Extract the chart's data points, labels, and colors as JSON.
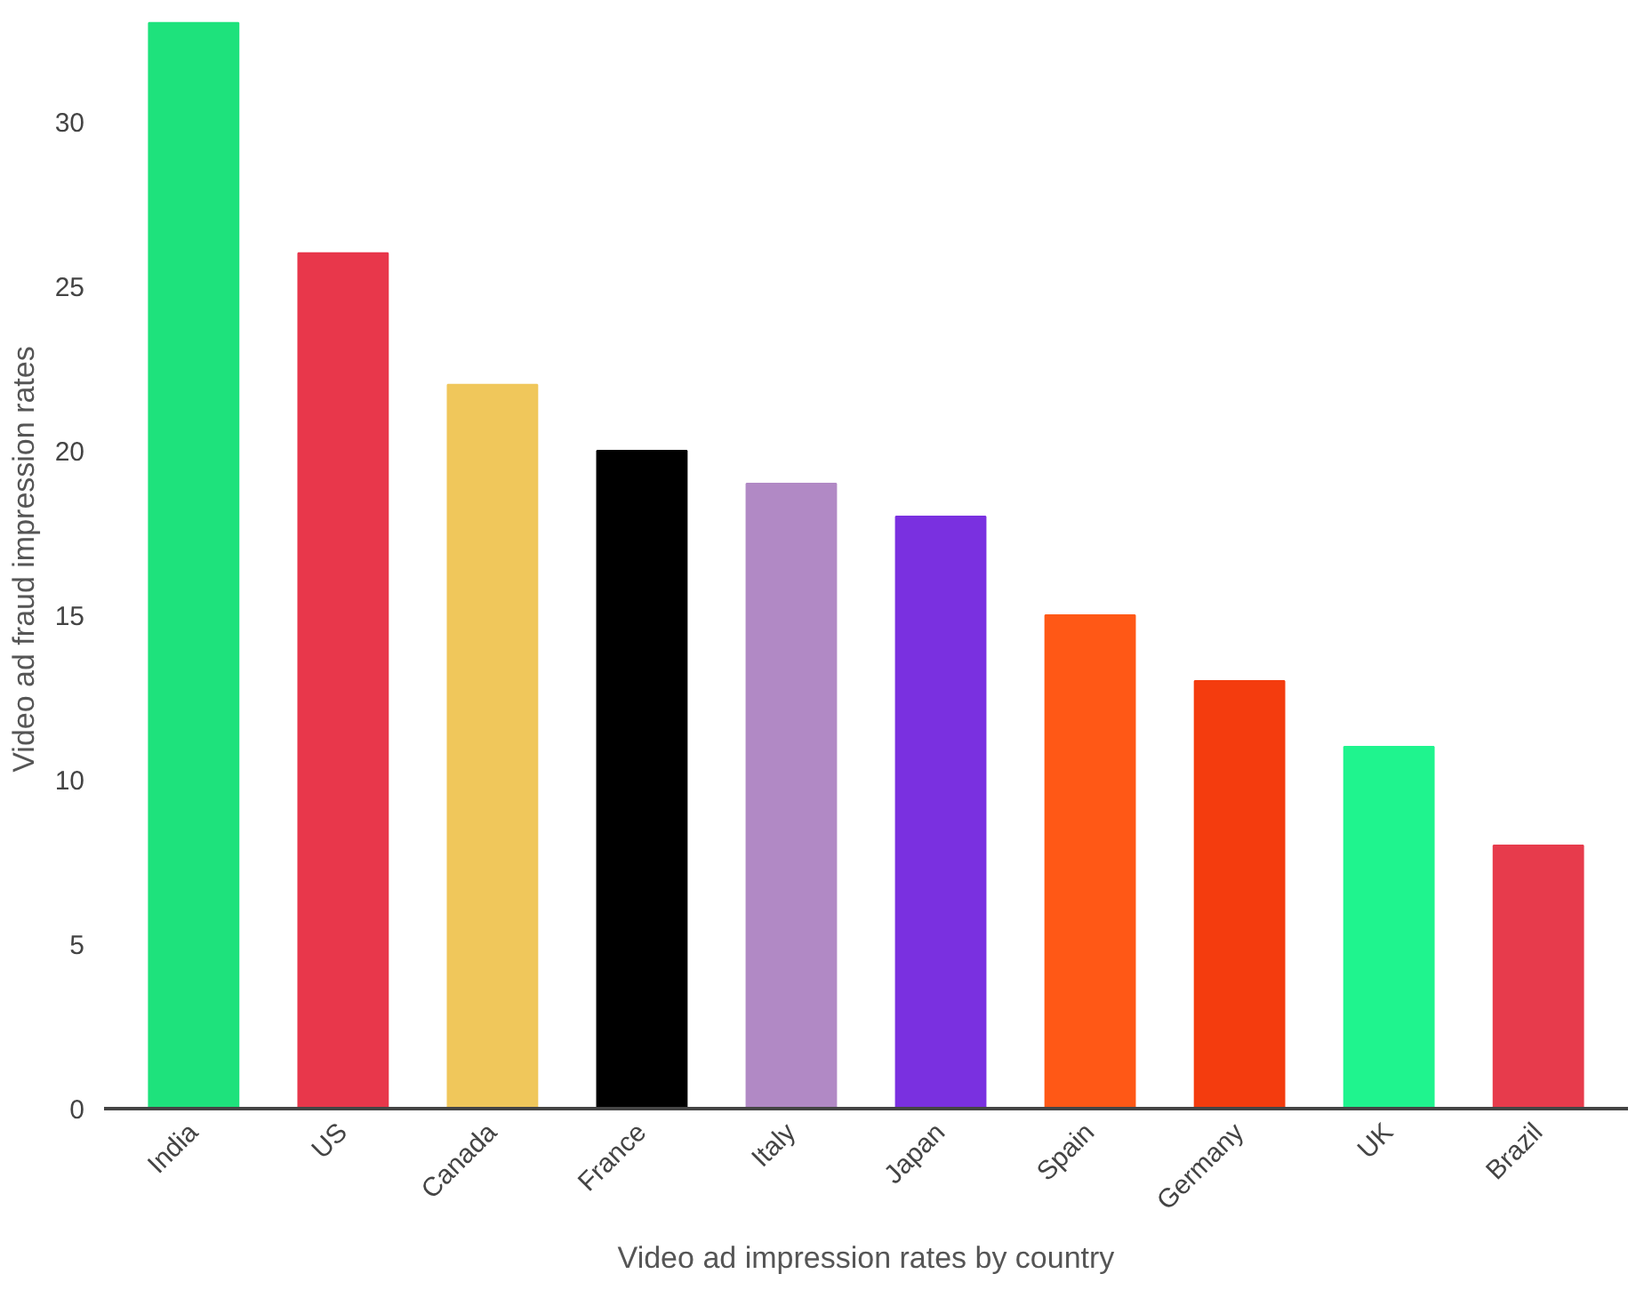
{
  "chart_data": {
    "type": "bar",
    "xlabel": "Video ad impression rates by country",
    "ylabel": "Video ad fraud impression rates",
    "categories": [
      "India",
      "US",
      "Canada",
      "France",
      "Italy",
      "Japan",
      "Spain",
      "Germany",
      "UK",
      "Brazil"
    ],
    "values": [
      33,
      26,
      22,
      20,
      19,
      18,
      15,
      13,
      11,
      8
    ],
    "colors": [
      "#1ee27c",
      "#e8374b",
      "#f0c75b",
      "#000000",
      "#b189c5",
      "#7a30e0",
      "#ff5816",
      "#f43c0e",
      "#1ff48e",
      "#e73b4c"
    ],
    "ylim": [
      0,
      33.4
    ],
    "yticks": [
      0,
      5,
      10,
      15,
      20,
      25,
      30
    ],
    "grid": false
  }
}
